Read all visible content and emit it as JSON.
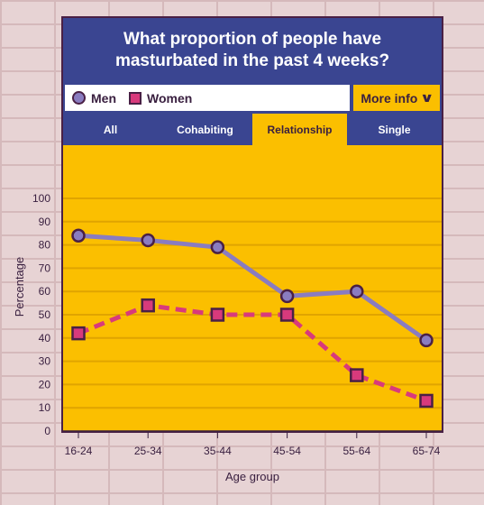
{
  "header": {
    "title": "What proportion of people have masturbated in the past 4 weeks?"
  },
  "legend": {
    "men_label": "Men",
    "women_label": "Women",
    "more_info_label": "More info"
  },
  "tabs": [
    {
      "label": "All",
      "active": false
    },
    {
      "label": "Cohabiting",
      "active": false
    },
    {
      "label": "Relationship",
      "active": true
    },
    {
      "label": "Single",
      "active": false
    }
  ],
  "colors": {
    "men": "#8a7cc0",
    "women": "#d83a7c",
    "background": "#fbbf00",
    "header": "#3a4591"
  },
  "chart_data": {
    "type": "line",
    "categories": [
      "16-24",
      "25-34",
      "35-44",
      "45-54",
      "55-64",
      "65-74"
    ],
    "series": [
      {
        "name": "Men",
        "values": [
          84,
          82,
          79,
          58,
          60,
          39
        ]
      },
      {
        "name": "Women",
        "values": [
          42,
          54,
          50,
          50,
          24,
          13
        ]
      }
    ],
    "xlabel": "Age group",
    "ylabel": "Percentage",
    "ylim": [
      0,
      100
    ],
    "yticks": [
      0,
      10,
      20,
      30,
      40,
      50,
      60,
      70,
      80,
      90,
      100
    ],
    "grid": true
  }
}
